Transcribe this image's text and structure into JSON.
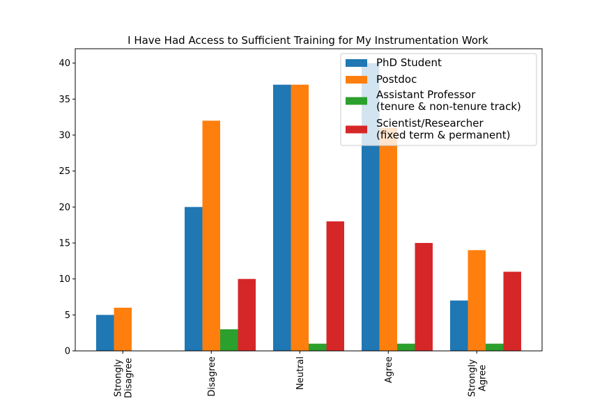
{
  "chart_data": {
    "type": "bar",
    "title": "I Have Had Access to Sufficient Training for My Instrumentation Work",
    "xlabel": "",
    "ylabel": "",
    "categories": [
      [
        "Strongly",
        "Disagree"
      ],
      [
        "Disagree"
      ],
      [
        "Neutral"
      ],
      [
        "Agree"
      ],
      [
        "Strongly",
        "Agree"
      ]
    ],
    "ylim": [
      0,
      42
    ],
    "yticks": [
      0,
      5,
      10,
      15,
      20,
      25,
      30,
      35,
      40
    ],
    "grid": false,
    "legend_position": "top-right",
    "series": [
      {
        "name": [
          "PhD Student"
        ],
        "color": "#1f77b4",
        "values": [
          5,
          20,
          37,
          40,
          7
        ]
      },
      {
        "name": [
          "Postdoc"
        ],
        "color": "#ff7f0e",
        "values": [
          6,
          32,
          37,
          31,
          14
        ]
      },
      {
        "name": [
          "Assistant Professor",
          "(tenure & non-tenure track)"
        ],
        "color": "#2ca02c",
        "values": [
          0,
          3,
          1,
          1,
          1
        ]
      },
      {
        "name": [
          "Scientist/Researcher",
          "(fixed term & permanent)"
        ],
        "color": "#d62728",
        "values": [
          0,
          10,
          18,
          15,
          11
        ]
      }
    ]
  }
}
